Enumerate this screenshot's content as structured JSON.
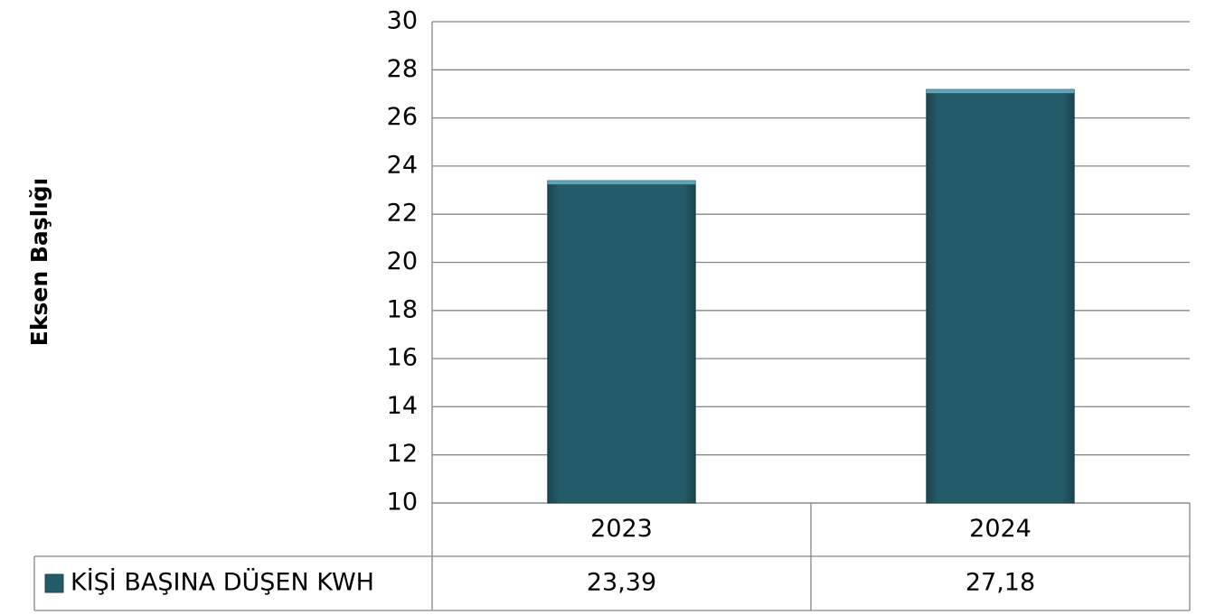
{
  "chart_data": {
    "type": "bar",
    "y_axis_label": "Eksen Başlığı",
    "categories": [
      "2023",
      "2024"
    ],
    "series": [
      {
        "name": "KİŞİ BAŞINA DÜŞEN KWH",
        "color": "#245b69",
        "values": [
          23.39,
          27.18
        ],
        "value_labels": [
          "23,39",
          "27,18"
        ]
      }
    ],
    "ylim": [
      10,
      30
    ],
    "yticks": [
      10,
      12,
      14,
      16,
      18,
      20,
      22,
      24,
      26,
      28,
      30
    ],
    "grid": true
  }
}
